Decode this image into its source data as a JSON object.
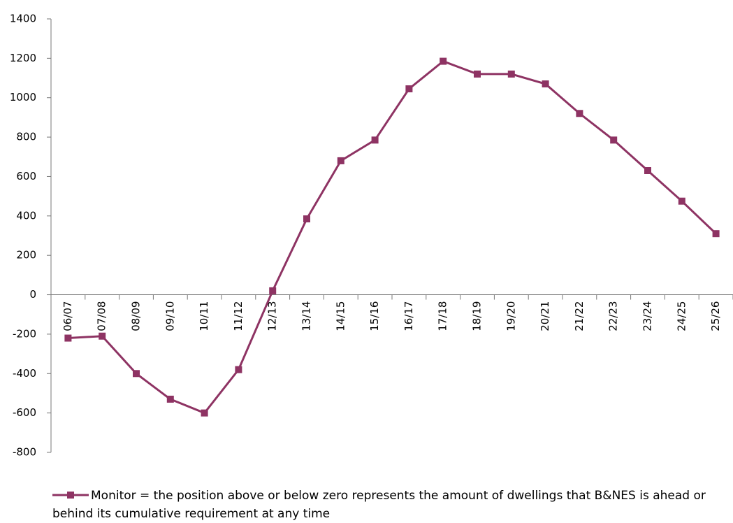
{
  "chart_data": {
    "type": "line",
    "categories": [
      "06/07",
      "07/08",
      "08/09",
      "09/10",
      "10/11",
      "11/12",
      "12/13",
      "13/14",
      "14/15",
      "15/16",
      "16/17",
      "17/18",
      "18/19",
      "19/20",
      "20/21",
      "21/22",
      "22/23",
      "23/24",
      "24/25",
      "25/26"
    ],
    "series": [
      {
        "name": "Monitor = the position above or below zero represents the amount of dwellings that B&NES is ahead or behind its cumulative requirement at any time",
        "color": "#8e3363",
        "values": [
          -220,
          -210,
          -400,
          -530,
          -600,
          -380,
          20,
          385,
          680,
          785,
          1045,
          1185,
          1120,
          1120,
          1070,
          920,
          785,
          630,
          475,
          310
        ]
      }
    ],
    "ylim": [
      -800,
      1400
    ],
    "yticks": [
      -800,
      -600,
      -400,
      -200,
      0,
      200,
      400,
      600,
      800,
      1000,
      1200,
      1400
    ],
    "grid": false,
    "legend": "bottom"
  }
}
